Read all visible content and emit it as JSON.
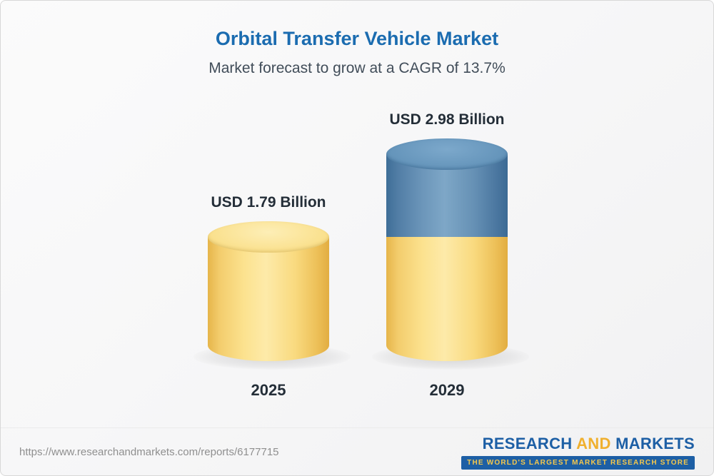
{
  "chart_data": {
    "type": "bar",
    "style": "3d-cylinder",
    "title": "Orbital Transfer Vehicle Market",
    "subtitle": "Market forecast to grow at a CAGR of 13.7%",
    "categories": [
      "2025",
      "2029"
    ],
    "values": [
      1.79,
      2.98
    ],
    "unit": "USD Billion",
    "bar_labels": [
      "USD 1.79 Billion",
      "USD 2.98 Billion"
    ],
    "cagr_percent": 13.7,
    "legend": "none",
    "series_colors": {
      "base_2025": "#F7CF6A",
      "growth_to_2029": "#5E8DB4"
    },
    "stacking_note": "2029 cylinder shows the 2025 base value in yellow with the incremental growth to 2029 in blue on top"
  },
  "footer": {
    "url": "https://www.researchandmarkets.com/reports/6177715",
    "logo": {
      "part1": "RESEARCH",
      "part2": "AND",
      "part3": "MARKETS",
      "tagline": "THE WORLD'S LARGEST MARKET RESEARCH STORE"
    }
  }
}
